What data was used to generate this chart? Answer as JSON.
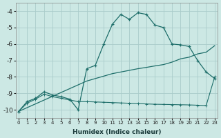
{
  "xlabel": "Humidex (Indice chaleur)",
  "background_color": "#cce8e4",
  "grid_color": "#aaccca",
  "line_color": "#1e6e6a",
  "xlim": [
    -0.3,
    23.3
  ],
  "ylim": [
    -10.5,
    -3.5
  ],
  "yticks": [
    -10,
    -9,
    -8,
    -7,
    -6,
    -5,
    -4
  ],
  "xticks": [
    0,
    1,
    2,
    3,
    4,
    5,
    6,
    7,
    8,
    9,
    10,
    11,
    12,
    13,
    14,
    15,
    16,
    17,
    18,
    19,
    20,
    21,
    22,
    23
  ],
  "line1_x": [
    0,
    1,
    2,
    3,
    4,
    5,
    6,
    7,
    8,
    9,
    10,
    11,
    12,
    13,
    14,
    15,
    16,
    17,
    18,
    19,
    20,
    21,
    22,
    23
  ],
  "line1_y": [
    -10.1,
    -9.5,
    -9.3,
    -8.9,
    -9.1,
    -9.2,
    -9.35,
    -10.0,
    -7.5,
    -7.3,
    -6.0,
    -4.8,
    -4.2,
    -4.5,
    -4.1,
    -4.2,
    -4.85,
    -5.0,
    -6.0,
    -6.05,
    -6.15,
    -7.0,
    -7.7,
    -8.1
  ],
  "line2_x": [
    0,
    8,
    9,
    10,
    11,
    12,
    13,
    14,
    15,
    16,
    17,
    18,
    19,
    20,
    21,
    22,
    23
  ],
  "line2_y": [
    -10.1,
    -8.25,
    -8.1,
    -7.95,
    -7.8,
    -7.7,
    -7.6,
    -7.5,
    -7.42,
    -7.33,
    -7.25,
    -7.1,
    -6.9,
    -6.8,
    -6.6,
    -6.5,
    -6.1
  ],
  "line3_x": [
    0,
    1,
    2,
    3,
    4,
    5,
    6,
    7,
    8,
    9,
    10,
    11,
    12,
    13,
    14,
    15,
    16,
    17,
    18,
    19,
    20,
    21,
    22,
    23
  ],
  "line3_y": [
    -10.1,
    -9.6,
    -9.35,
    -9.05,
    -9.2,
    -9.3,
    -9.4,
    -9.5,
    -9.5,
    -9.52,
    -9.54,
    -9.56,
    -9.58,
    -9.6,
    -9.62,
    -9.64,
    -9.66,
    -9.67,
    -9.68,
    -9.69,
    -9.7,
    -9.72,
    -9.74,
    -8.0
  ]
}
